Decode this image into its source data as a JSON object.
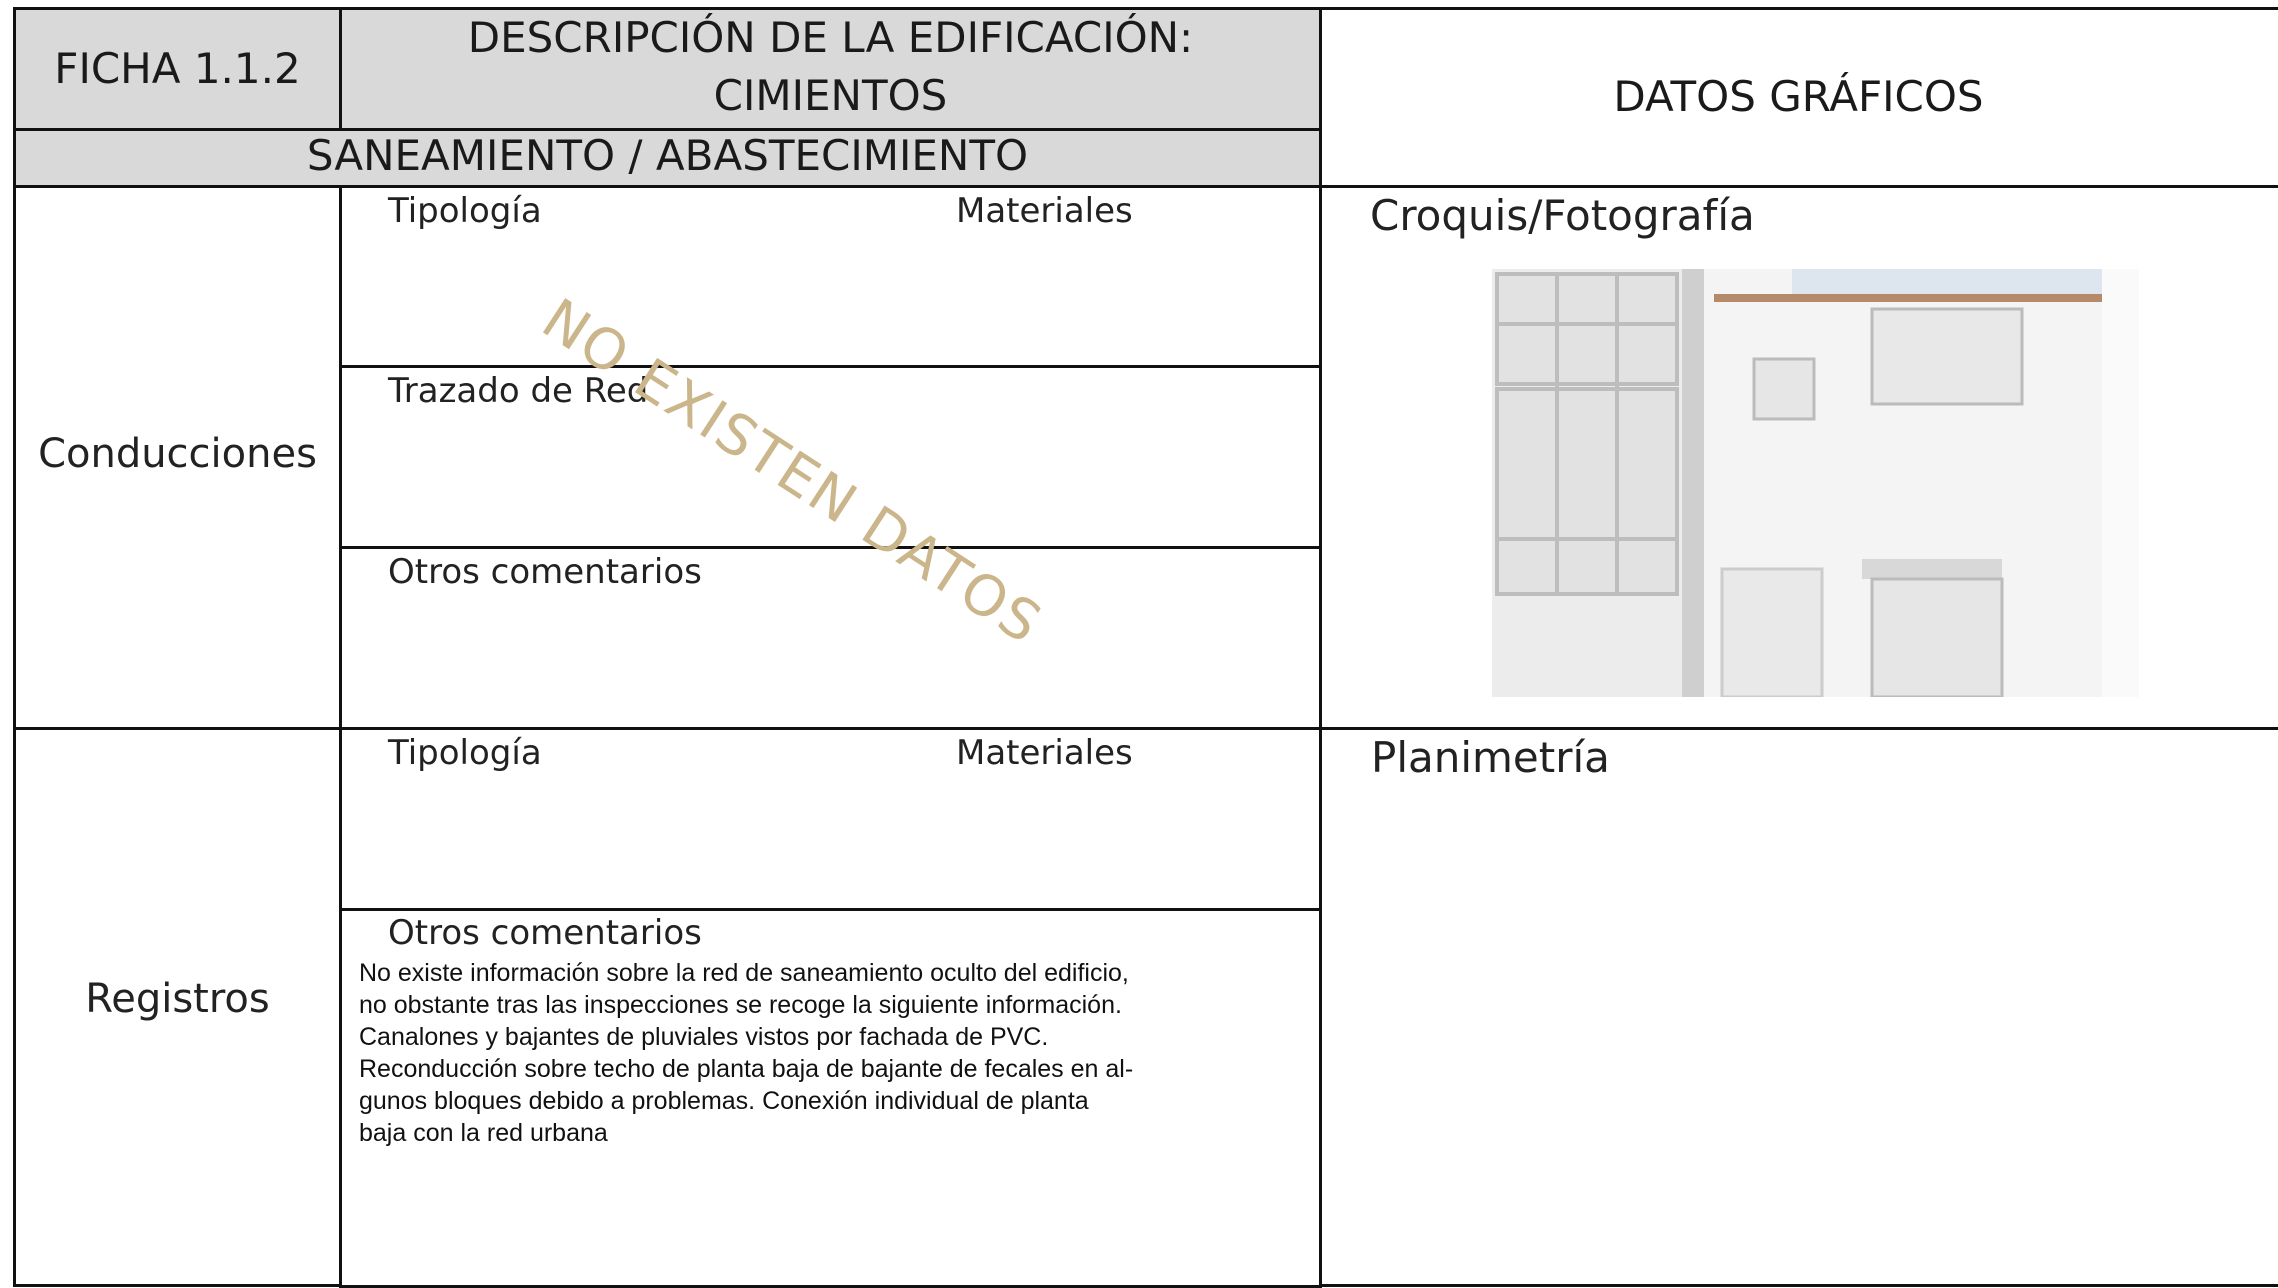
{
  "header": {
    "ficha": "FICHA 1.1.2",
    "description": [
      "DESCRIPCIÓN DE LA EDIFICACIÓN:",
      "CIMIENTOS"
    ],
    "section": "SANEAMIENTO / ABASTECIMIENTO",
    "graphics": "DATOS GRÁFICOS"
  },
  "conducciones": {
    "label": "Conducciones",
    "tipologia": "Tipología",
    "materiales": "Materiales",
    "trazado": "Trazado de Red",
    "otros": "Otros comentarios",
    "watermark": "NO EXISTEN DATOS"
  },
  "registros": {
    "label": "Registros",
    "tipologia": "Tipología",
    "materiales": "Materiales",
    "otros": "Otros comentarios",
    "comment": [
      "No existe información sobre la red de saneamiento oculto del edificio,",
      "no obstante tras las inspecciones se recoge la siguiente información.",
      "Canalones y bajantes de pluviales vistos por fachada de PVC.",
      "Reconducción sobre techo de planta baja de bajante de fecales en al-",
      "gunos bloques debido a problemas. Conexión individual de planta",
      "baja con la red urbana"
    ]
  },
  "graphics": {
    "photo_label": "Croquis/Fotografía",
    "plan_label": "Planimetría"
  }
}
